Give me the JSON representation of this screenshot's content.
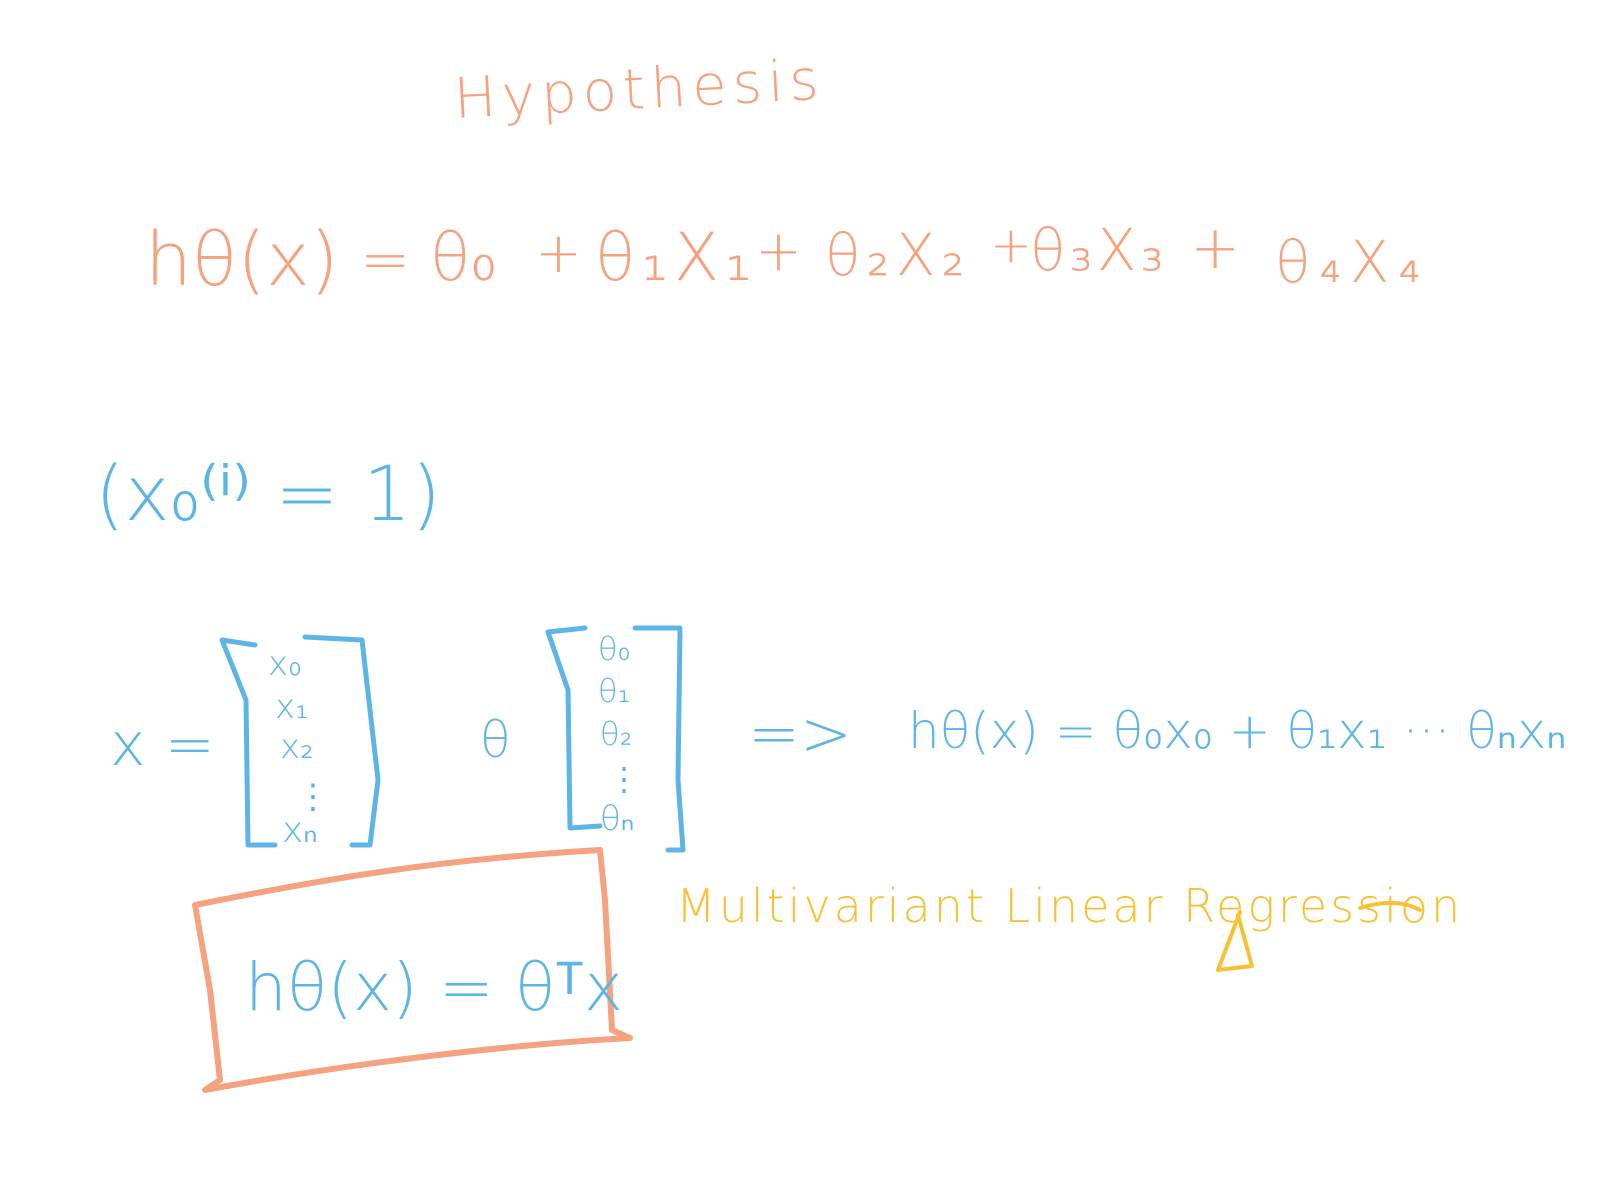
{
  "title": "Hypothesis",
  "hypothesis_expanded": {
    "lhs": "hθ(x)",
    "equals": "=",
    "terms": [
      "θ₀",
      "+",
      "θ₁X₁",
      "+",
      "θ₂X₂",
      "+",
      "θ₃X₃",
      "+",
      "θ₄X₄"
    ]
  },
  "x0_note": "(x₀⁽ⁱ⁾ = 1)",
  "vectors": {
    "x_label": "x =",
    "x_entries": [
      "x₀",
      "x₁",
      "x₂",
      "⋮",
      "xₙ"
    ],
    "theta_label": "θ",
    "theta_entries": [
      "θ₀",
      "θ₁",
      "θ₂",
      "⋮",
      "θₙ"
    ],
    "implies": "=>",
    "expanded": "hθ(x) = θ₀x₀ + θ₁x₁ ··· θₙxₙ"
  },
  "boxed_formula": "hθ(x) = θᵀx",
  "caption": "Multivariant Linear Regression",
  "colors": {
    "orange": "#f4a27f",
    "blue": "#5db5e6",
    "yellow": "#f6c135",
    "background": "#ffffff"
  }
}
